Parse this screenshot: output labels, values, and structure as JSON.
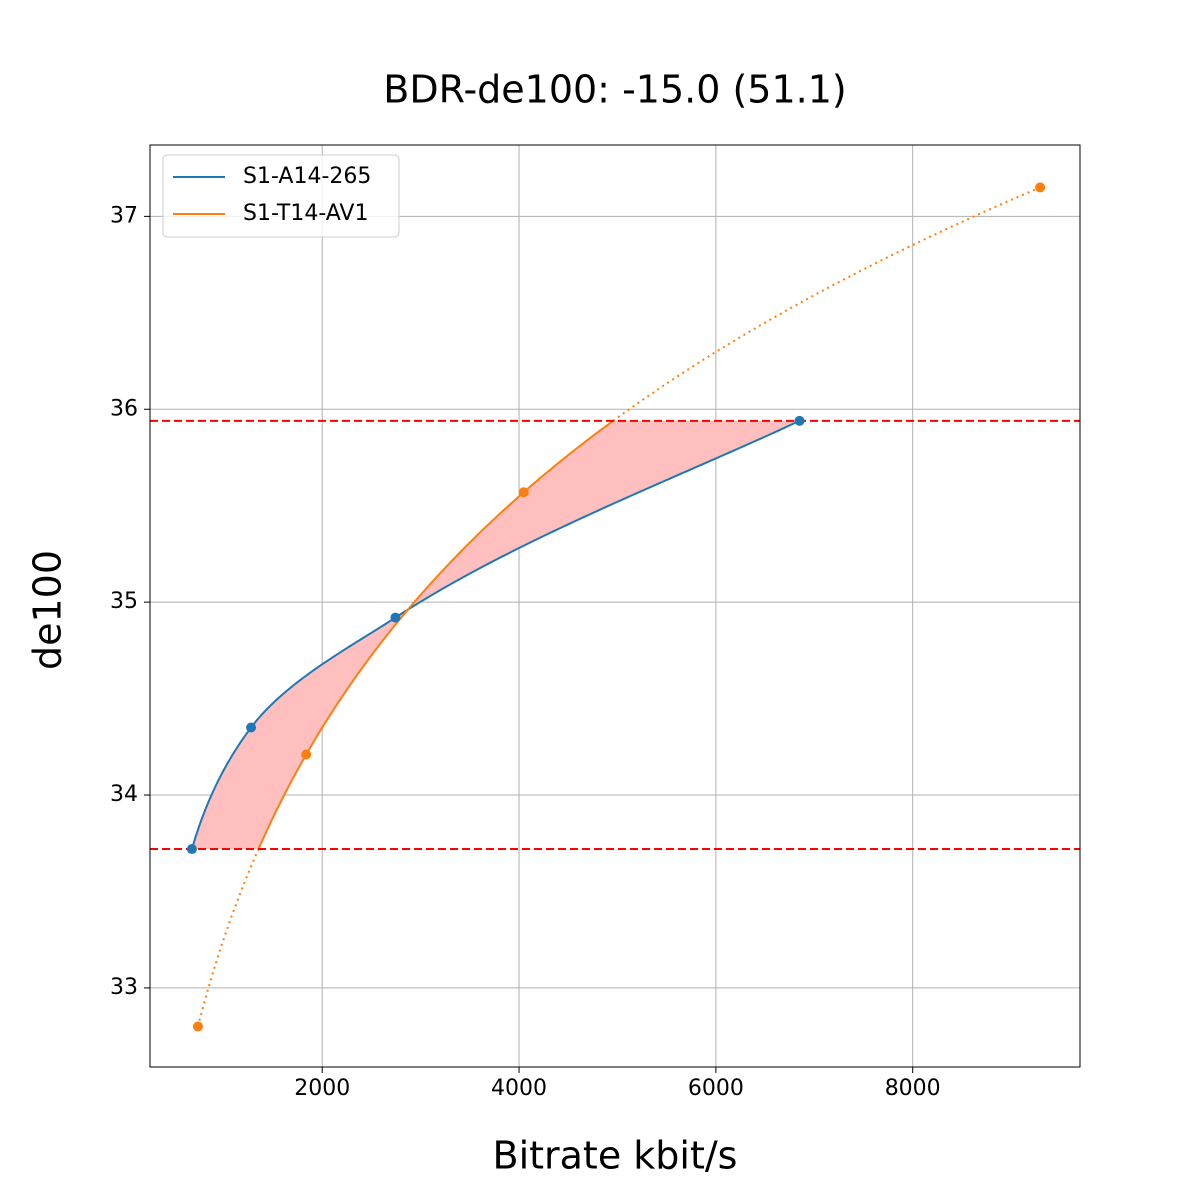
{
  "chart_data": {
    "type": "line",
    "title": "BDR-de100: -15.0 (51.1)",
    "x_label": "Bitrate kbit/s",
    "y_label": "de100",
    "series": [
      {
        "name": "S1-A14-265",
        "color": "#1f77b4",
        "x": [
          676,
          1277,
          2744,
          6850
        ],
        "values": [
          33.72,
          34.35,
          34.92,
          35.94
        ]
      },
      {
        "name": "S1-T14-AV1",
        "color": "#ff7f0e",
        "x": [
          737,
          1837,
          4048,
          9295
        ],
        "values": [
          32.8,
          34.21,
          35.57,
          37.15
        ]
      }
    ],
    "xlim": [
      250,
      9700
    ],
    "ylim": [
      32.59,
      37.37
    ],
    "xticks": [
      2000,
      4000,
      6000,
      8000
    ],
    "yticks": [
      33,
      34,
      35,
      36,
      37
    ],
    "grid": true,
    "grid_color": "#b0b0b0",
    "legend": "upper left",
    "overlap_line_color": "#ff0000",
    "overlap_fill_color": "#ffbfbf"
  }
}
